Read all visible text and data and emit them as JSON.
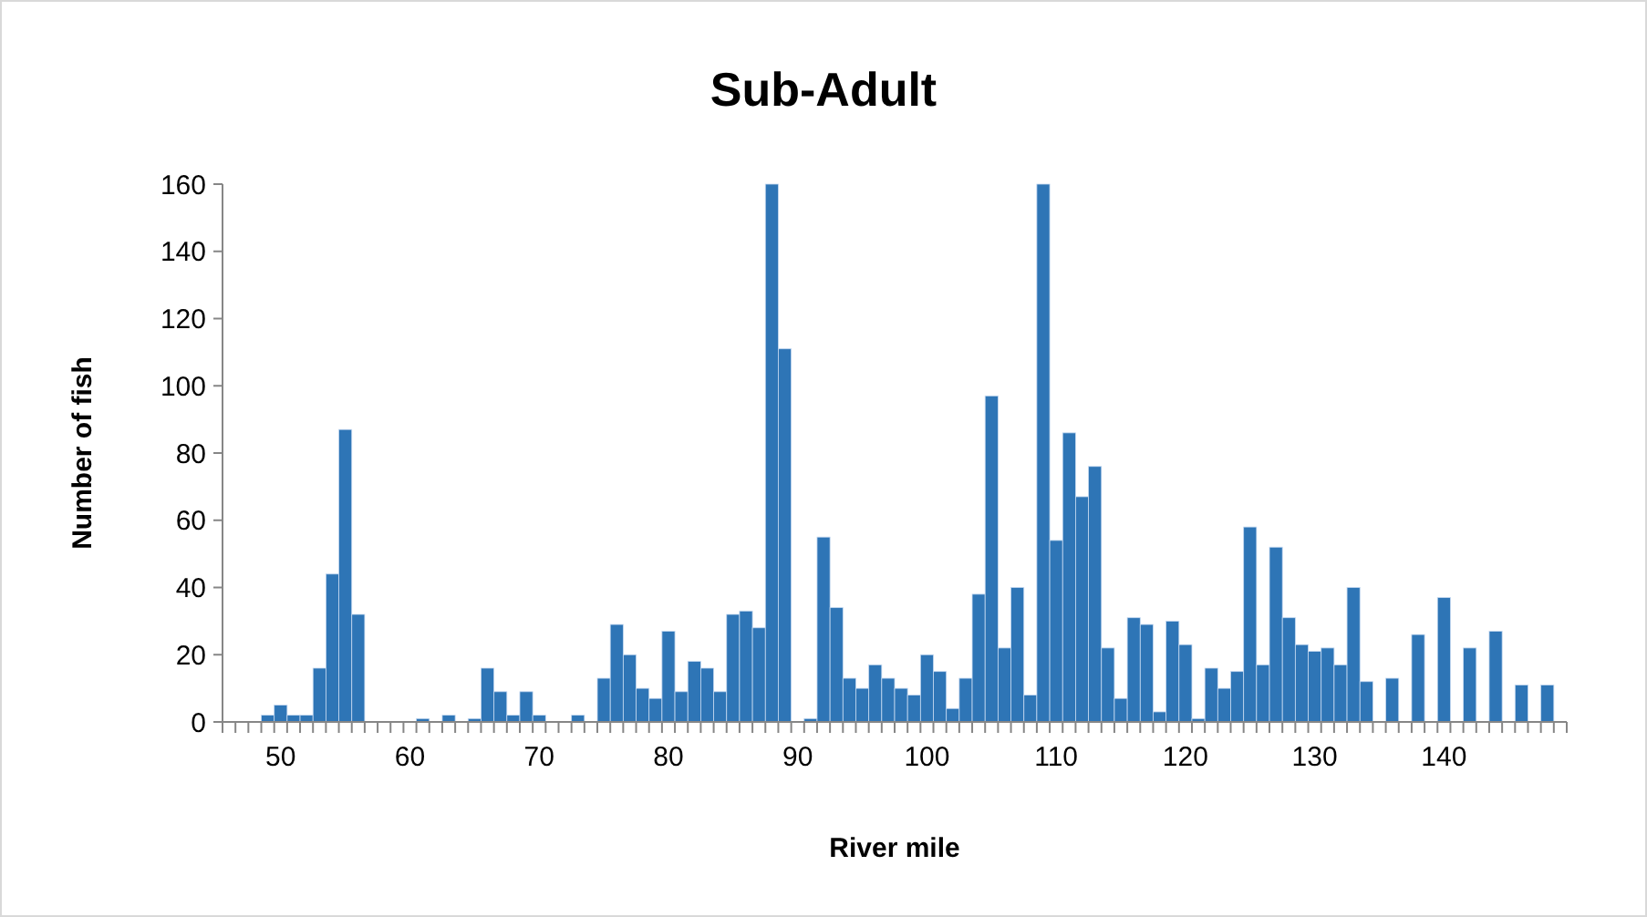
{
  "chart_data": {
    "type": "bar",
    "title": "Sub-Adult",
    "xlabel": "River mile",
    "ylabel": "Number of fish",
    "categories": [
      null,
      null,
      null,
      null,
      "50",
      null,
      null,
      null,
      null,
      null,
      null,
      null,
      null,
      null,
      "60",
      null,
      null,
      null,
      null,
      null,
      null,
      null,
      null,
      null,
      "70",
      null,
      null,
      null,
      null,
      null,
      null,
      null,
      null,
      null,
      "80",
      null,
      null,
      null,
      null,
      null,
      null,
      null,
      null,
      null,
      "90",
      null,
      null,
      null,
      null,
      null,
      null,
      null,
      null,
      null,
      "100",
      null,
      null,
      null,
      null,
      null,
      null,
      null,
      null,
      null,
      "110",
      null,
      null,
      null,
      null,
      null,
      null,
      null,
      null,
      null,
      "120",
      null,
      null,
      null,
      null,
      null,
      null,
      null,
      null,
      null,
      "130",
      null,
      null,
      null,
      null,
      null,
      null,
      null,
      null,
      null,
      "140",
      null,
      null,
      null,
      null,
      null,
      null,
      null,
      null,
      null
    ],
    "values": [
      0,
      0,
      0,
      2,
      5,
      2,
      2,
      16,
      44,
      87,
      32,
      0,
      0,
      0,
      0,
      1,
      0,
      2,
      0,
      1,
      16,
      9,
      2,
      9,
      2,
      0,
      0,
      2,
      0,
      13,
      29,
      20,
      10,
      7,
      27,
      9,
      18,
      16,
      9,
      32,
      33,
      28,
      160,
      111,
      0,
      1,
      55,
      34,
      13,
      10,
      17,
      13,
      10,
      8,
      20,
      15,
      4,
      13,
      38,
      97,
      22,
      40,
      8,
      160,
      54,
      86,
      67,
      76,
      22,
      7,
      31,
      29,
      3,
      30,
      23,
      1,
      16,
      10,
      15,
      58,
      17,
      52,
      31,
      23,
      21,
      22,
      17,
      40,
      12,
      0,
      13,
      0,
      26,
      0,
      37,
      0,
      22,
      0,
      27,
      0,
      11,
      0,
      11,
      0
    ],
    "color": "#2e75b6",
    "ylim": [
      0,
      160
    ],
    "yticks": [
      0,
      20,
      40,
      60,
      80,
      100,
      120,
      140,
      160
    ],
    "grid": false
  }
}
